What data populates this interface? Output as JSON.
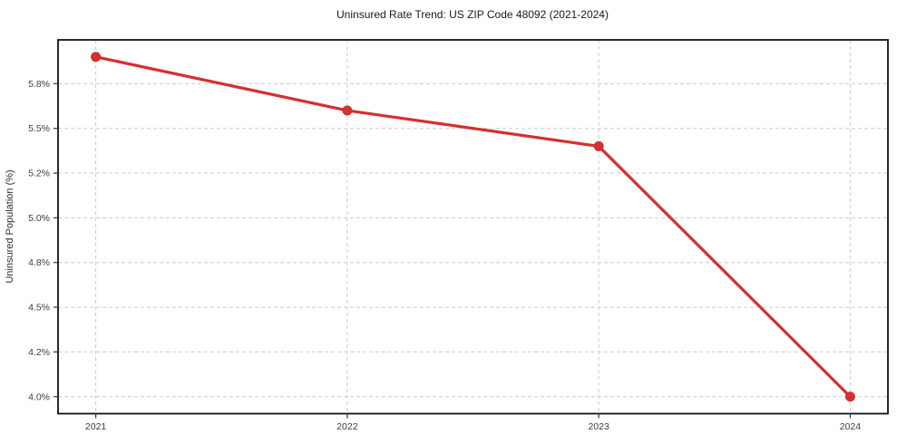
{
  "chart_data": {
    "type": "line",
    "title": "Uninsured Rate Trend: US ZIP Code 48092 (2021-2024)",
    "xlabel": "",
    "ylabel": "Uninsured Population (%)",
    "categories": [
      "2021",
      "2022",
      "2023",
      "2024"
    ],
    "series": [
      {
        "name": "Uninsured rate",
        "values": [
          5.9,
          5.6,
          5.4,
          4.0
        ],
        "unit": "%"
      }
    ],
    "yticks": {
      "values": [
        4.0,
        4.25,
        4.5,
        4.75,
        5.0,
        5.25,
        5.5,
        5.75
      ],
      "labels": [
        "4.0%",
        "4.2%",
        "4.5%",
        "4.8%",
        "5.0%",
        "5.2%",
        "5.5%",
        "5.8%"
      ]
    },
    "ylim": [
      3.905,
      5.995
    ],
    "grid": "both-dashed",
    "legend": "none",
    "colors": {
      "line": "#d3302f",
      "marker": "#d3302f",
      "grid": "#cccccc",
      "spine": "#111111",
      "tick": "#333333",
      "background": "#ffffff"
    }
  }
}
